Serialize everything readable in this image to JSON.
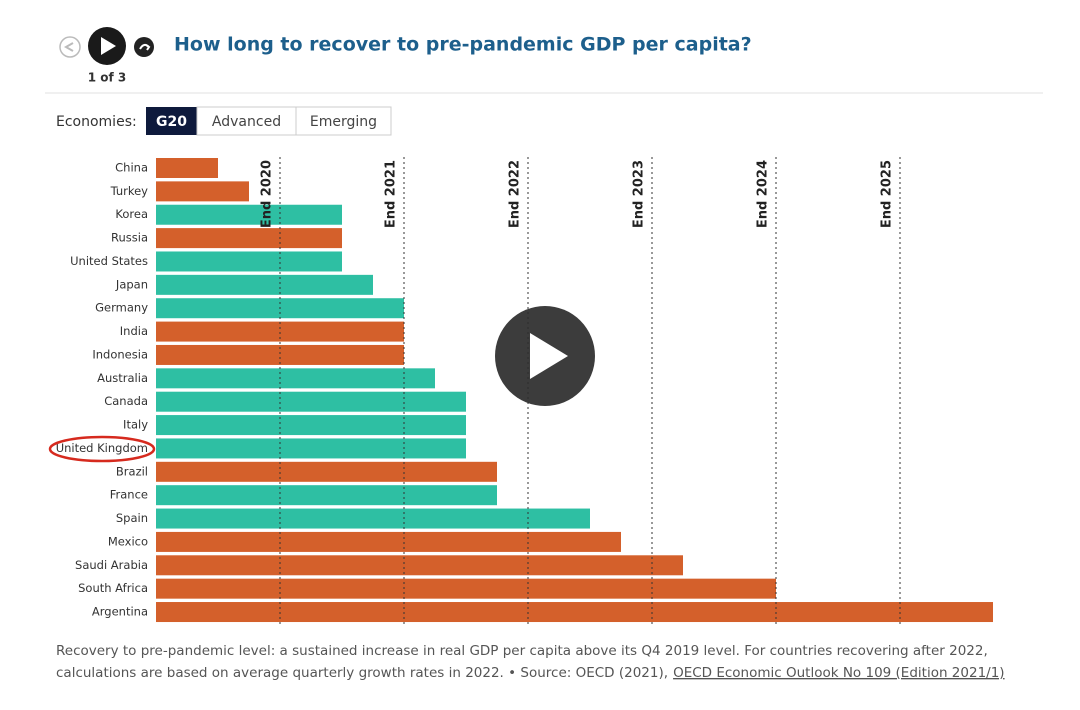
{
  "nav": {
    "counter": "1 of 3"
  },
  "controls": {
    "label": "Economies:",
    "options": [
      "G20",
      "Advanced",
      "Emerging"
    ]
  },
  "chart_data": {
    "type": "bar",
    "orientation": "horizontal",
    "title": "How long to recover to pre-pandemic GDP per capita?",
    "categories": [
      "China",
      "Turkey",
      "Korea",
      "Russia",
      "United States",
      "Japan",
      "Germany",
      "India",
      "Indonesia",
      "Australia",
      "Canada",
      "Italy",
      "United Kingdom",
      "Brazil",
      "France",
      "Spain",
      "Mexico",
      "Saudi Arabia",
      "South Africa",
      "Argentina"
    ],
    "values": [
      2019.5,
      2019.75,
      2020.5,
      2020.5,
      2020.5,
      2020.75,
      2021,
      2021,
      2021,
      2021.25,
      2021.5,
      2021.5,
      2021.5,
      2021.75,
      2021.75,
      2022.5,
      2022.75,
      2023.25,
      2024,
      2025.75
    ],
    "colors": [
      "#d4602b",
      "#d4602b",
      "#2ebfa3",
      "#d4602b",
      "#2ebfa3",
      "#2ebfa3",
      "#2ebfa3",
      "#d4602b",
      "#d4602b",
      "#2ebfa3",
      "#2ebfa3",
      "#2ebfa3",
      "#2ebfa3",
      "#d4602b",
      "#2ebfa3",
      "#2ebfa3",
      "#d4602b",
      "#d4602b",
      "#d4602b",
      "#d4602b"
    ],
    "xlim": [
      2019,
      2026
    ],
    "xticks": [
      {
        "value": 2020,
        "label": "End 2020"
      },
      {
        "value": 2021,
        "label": "End 2021"
      },
      {
        "value": 2022,
        "label": "End 2022"
      },
      {
        "value": 2023,
        "label": "End 2023"
      },
      {
        "value": 2024,
        "label": "End 2024"
      },
      {
        "value": 2025,
        "label": "End 2025"
      }
    ],
    "grid": true,
    "note": "Recovery to pre-pandemic level: a sustained increase in real GDP per capita above its Q4 2019 level. For countries recovering after 2022,",
    "note2": "calculations are based on average quarterly growth rates in 2022. • Source: OECD (2021),",
    "source_link": "OECD Economic Outlook No 109 (Edition 2021/1)"
  }
}
